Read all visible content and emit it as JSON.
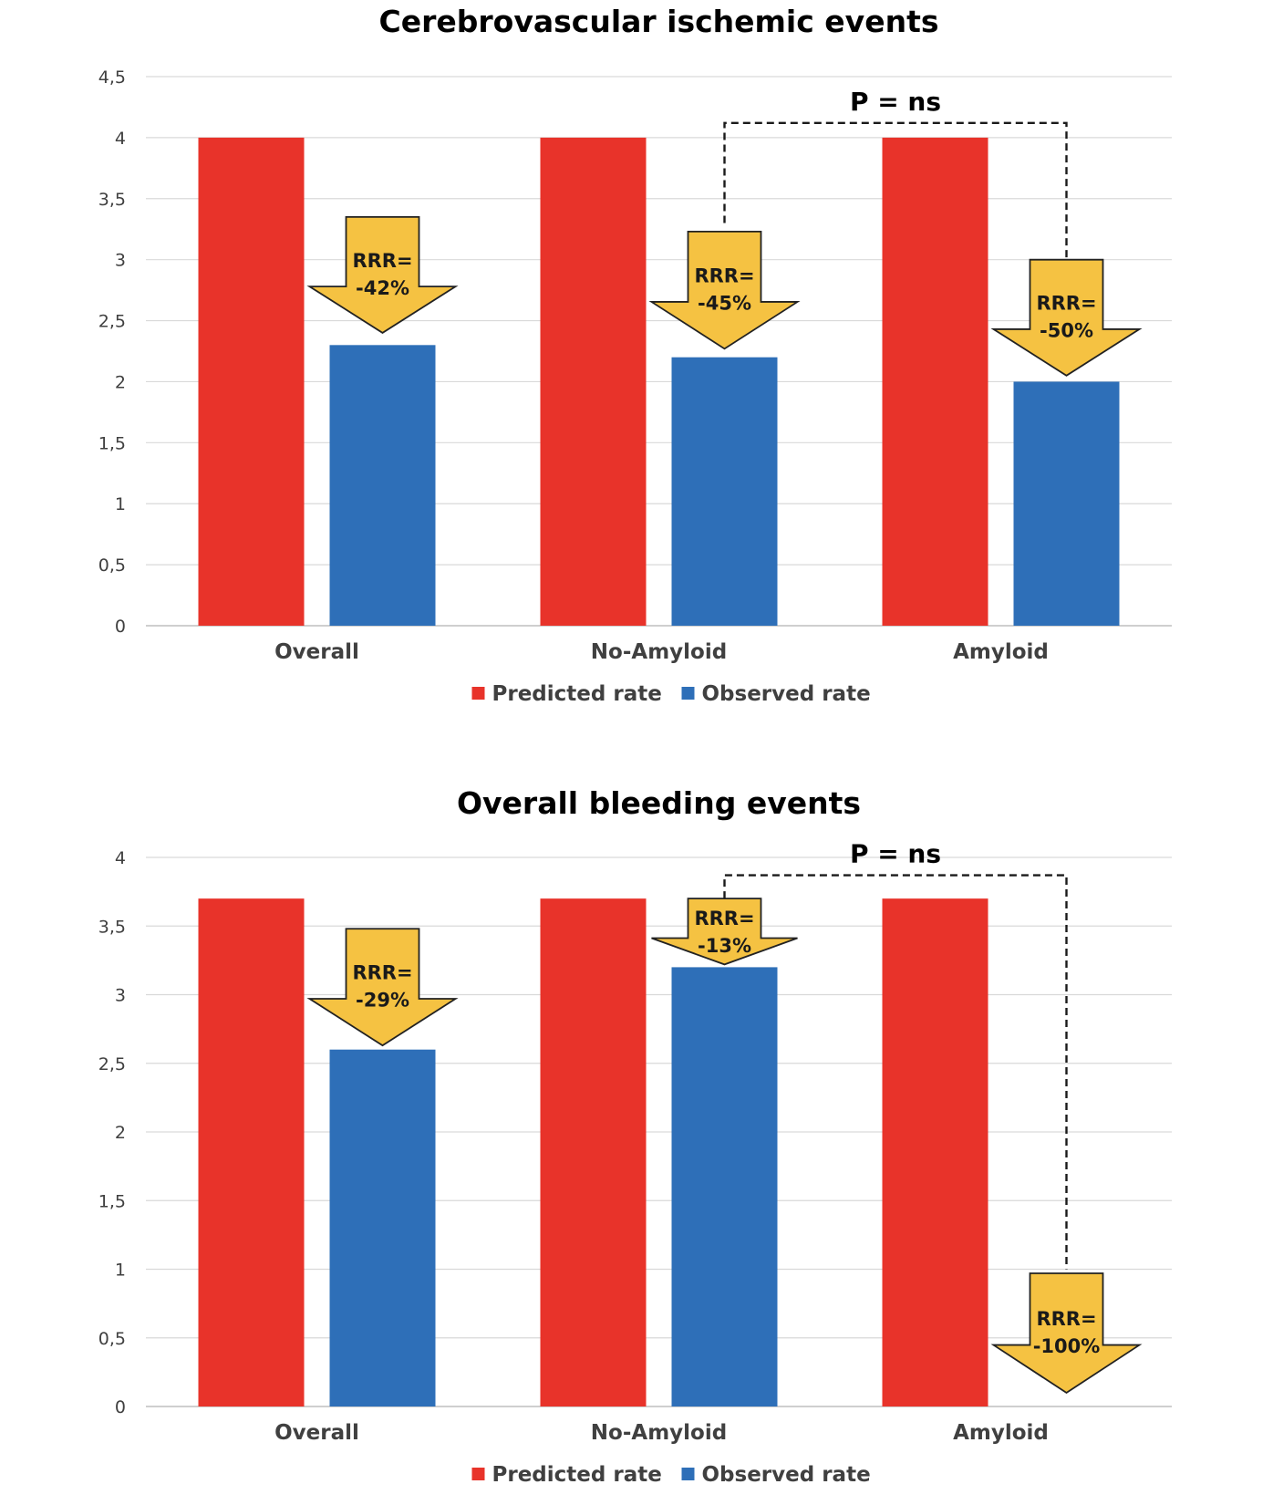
{
  "colors": {
    "predicted": "#E8332A",
    "observed": "#2E6FB8",
    "arrow_fill": "#F5C242",
    "arrow_stroke": "#222222",
    "grid": "#D9D9D9",
    "axis": "#BFBFBF"
  },
  "chart_data": [
    {
      "type": "bar",
      "title": "Cerebrovascular ischemic events",
      "categories": [
        "Overall",
        "No-Amyloid",
        "Amyloid"
      ],
      "series": [
        {
          "name": "Predicted rate",
          "values": [
            4,
            4,
            4
          ]
        },
        {
          "name": "Observed rate",
          "values": [
            2.3,
            2.2,
            2.0
          ]
        }
      ],
      "ylim": [
        0,
        4.5
      ],
      "yticks": [
        "0",
        "0,5",
        "1",
        "1,5",
        "2",
        "2,5",
        "3",
        "3,5",
        "4",
        "4,5"
      ],
      "grid": true,
      "legend": "bottom-center",
      "annotations": [
        {
          "category": "Overall",
          "text": [
            "RRR=",
            "-42%"
          ],
          "from": 3.35,
          "to": 2.4
        },
        {
          "category": "No-Amyloid",
          "text": [
            "RRR=",
            "-45%"
          ],
          "from": 3.23,
          "to": 2.27
        },
        {
          "category": "Amyloid",
          "text": [
            "RRR=",
            "-50%"
          ],
          "from": 3.0,
          "to": 2.05
        }
      ],
      "bracket": {
        "label": "P = ns",
        "between": [
          "No-Amyloid",
          "Amyloid"
        ],
        "level": 4.12,
        "from_levels": [
          3.3,
          3.0
        ]
      }
    },
    {
      "type": "bar",
      "title": "Overall bleeding events",
      "categories": [
        "Overall",
        "No-Amyloid",
        "Amyloid"
      ],
      "series": [
        {
          "name": "Predicted rate",
          "values": [
            3.7,
            3.7,
            3.7
          ]
        },
        {
          "name": "Observed rate",
          "values": [
            2.6,
            3.2,
            0
          ]
        }
      ],
      "ylim": [
        0,
        4
      ],
      "yticks": [
        "0",
        "0,5",
        "1",
        "1,5",
        "2",
        "2,5",
        "3",
        "3,5",
        "4"
      ],
      "grid": true,
      "legend": "bottom-center",
      "annotations": [
        {
          "category": "Overall",
          "text": [
            "RRR=",
            "-29%"
          ],
          "from": 3.48,
          "to": 2.63
        },
        {
          "category": "No-Amyloid",
          "text": [
            "RRR=",
            "-13%"
          ],
          "from": 3.7,
          "to": 3.22
        },
        {
          "category": "Amyloid",
          "text": [
            "RRR=",
            "-100%"
          ],
          "from": 0.97,
          "to": 0.1
        }
      ],
      "bracket": {
        "label": "P = ns",
        "between": [
          "No-Amyloid",
          "Amyloid"
        ],
        "level": 3.87,
        "from_levels": [
          3.7,
          1.0
        ]
      }
    }
  ]
}
